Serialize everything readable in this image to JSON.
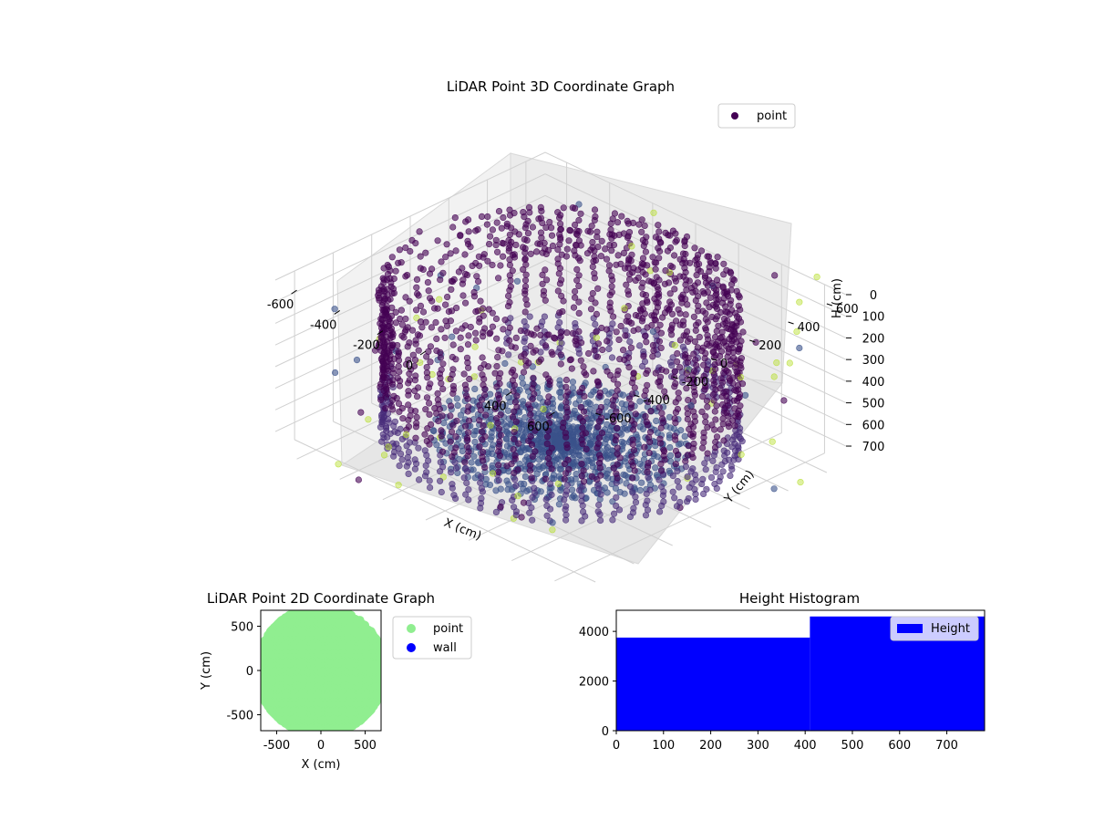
{
  "chart_data": [
    {
      "type": "scatter",
      "subtype": "3d",
      "title": "LiDAR Point 3D Coordinate Graph",
      "xlabel": "X (cm)",
      "ylabel": "Y (cm)",
      "zlabel": "H (cm)",
      "x_ticks": [
        "-600",
        "-400",
        "-200",
        "0",
        "400",
        "600"
      ],
      "y_ticks": [
        "-600",
        "-400",
        "-200",
        "0",
        "200",
        "400",
        "600"
      ],
      "z_ticks": [
        "0",
        "100",
        "200",
        "300",
        "400",
        "500",
        "600",
        "700"
      ],
      "xlim": [
        -700,
        700
      ],
      "ylim": [
        -700,
        700
      ],
      "zlim": [
        0,
        780
      ],
      "z_inverted": true,
      "grid": true,
      "legend": {
        "placement": "upper-right",
        "entries": [
          {
            "label": "point",
            "color": "#440154"
          }
        ]
      },
      "colors": {
        "cmap_low": "#440154",
        "cmap_mid": "#3b528b",
        "cmap_high": "#b5de2b"
      },
      "structure": {
        "floor_radius_cm": 450,
        "wall_radius_cm": 620,
        "wall_height_range_cm": [
          0,
          700
        ],
        "ceiling_ring_height_cm": 0,
        "description_free": true
      }
    },
    {
      "type": "scatter",
      "title": "LiDAR Point 2D Coordinate Graph",
      "xlabel": "X (cm)",
      "ylabel": "Y (cm)",
      "x_ticks": [
        "-500",
        "0",
        "500"
      ],
      "y_ticks": [
        "500",
        "0",
        "-500"
      ],
      "xlim": [
        -680,
        680
      ],
      "ylim": [
        -680,
        680
      ],
      "legend": {
        "placement": "outside-right",
        "entries": [
          {
            "label": "point",
            "color": "#90ee90"
          },
          {
            "label": "wall",
            "color": "#0000ff"
          }
        ]
      }
    },
    {
      "type": "bar",
      "subtype": "histogram",
      "title": "Height Histogram",
      "x_ticks": [
        "0",
        "100",
        "200",
        "300",
        "400",
        "500",
        "600",
        "700"
      ],
      "y_ticks": [
        "0",
        "2000",
        "4000"
      ],
      "xlim": [
        0,
        780
      ],
      "ylim": [
        0,
        4850
      ],
      "bins": [
        {
          "from": 0,
          "to": 410,
          "count": 3750
        },
        {
          "from": 410,
          "to": 780,
          "count": 4600
        }
      ],
      "legend": {
        "placement": "upper-right",
        "entries": [
          {
            "label": "Height",
            "color": "#0000ff"
          }
        ]
      }
    }
  ]
}
